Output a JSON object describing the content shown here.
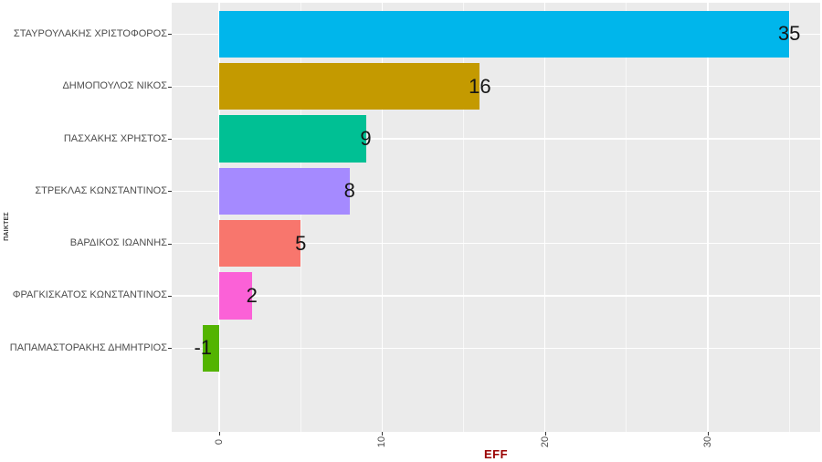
{
  "chart_data": {
    "type": "bar",
    "orientation": "horizontal",
    "title": "",
    "xlabel": "EFF",
    "ylabel": "ΠΑΙΚΤΕΣ",
    "categories": [
      "ΣΤΑΥΡΟΥΛΑΚΗΣ ΧΡΙΣΤΟΦΟΡΟΣ",
      "ΔΗΜΟΠΟΥΛΟΣ ΝΙΚΟΣ",
      "ΠΑΣΧΑΚΗΣ ΧΡΗΣΤΟΣ",
      "ΣΤΡΕΚΛΑΣ ΚΩΝΣΤΑΝΤΙΝΟΣ",
      "ΒΑΡΔΙΚΟΣ ΙΩΑΝΝΗΣ",
      "ΦΡΑΓΚΙΣΚΑΤΟΣ ΚΩΝΣΤΑΝΤΙΝΟΣ",
      "ΠΑΠΑΜΑΣΤΟΡΑΚΗΣ ΔΗΜΗΤΡΙΟΣ"
    ],
    "values": [
      35,
      16,
      9,
      8,
      5,
      2,
      -1
    ],
    "bar_colors": [
      "#00B6EB",
      "#C49A00",
      "#00C094",
      "#A58AFF",
      "#F8766D",
      "#FB61D7",
      "#53B400"
    ],
    "value_labels": [
      "35",
      "16",
      "9",
      "8",
      "5",
      "2",
      "-1"
    ],
    "xlim": [
      -2.92,
      36.9
    ],
    "x_major_ticks": [
      0,
      10,
      20,
      30
    ],
    "x_minor_ticks": [
      5,
      15,
      25,
      35
    ],
    "x_tick_labels": [
      "0",
      "10",
      "20",
      "30"
    ],
    "grid": true,
    "legend": false
  },
  "style": {
    "panel_bg": "#EBEBEB",
    "grid_major_color": "#FFFFFF",
    "grid_minor_color": "rgba(255,255,255,0.65)",
    "axis_text_color": "#4D4D4D",
    "tick_mark_color": "#333333",
    "value_label_color": "#151515",
    "x_axis_title_color": "#990000",
    "y_axis_title_color": "#3A3A3A"
  }
}
